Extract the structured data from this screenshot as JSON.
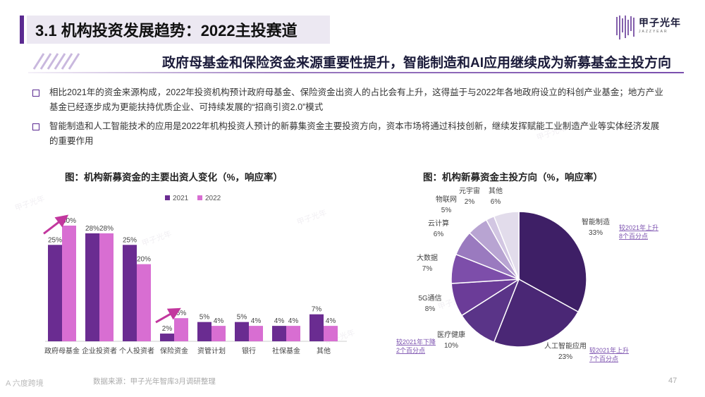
{
  "header": {
    "title": "3.1 机构投资发展趋势：2022主投赛道",
    "logo_name": "甲子光年",
    "logo_sub": "JAZZYEAR"
  },
  "subtitle": "政府母基金和保险资金来源重要性提升，智能制造和AI应用继续成为新募基金主投方向",
  "bullets": [
    "相比2021年的资金来源构成，2022年投资机构预计政府母基金、保险资金出资人的占比会有上升，这得益于与2022年各地政府设立的科创产业基金；地方产业基金已经逐步成为更能扶持优质企业、可持续发展的“招商引资2.0”模式",
    "智能制造和人工智能技术的应用是2022年机构投资人预计的新募集资金主要投资方向，资本市场将通过科技创新，继续发挥赋能工业制造产业等实体经济发展的重要作用"
  ],
  "chart_data": [
    {
      "type": "bar",
      "title": "图：机构新募资金的主要出资人变化（%，响应率）",
      "categories": [
        "政府母基金",
        "企业投资者",
        "个人投资者",
        "保险资金",
        "资管计划",
        "银行",
        "社保基金",
        "其他"
      ],
      "series": [
        {
          "name": "2021",
          "values": [
            25,
            28,
            25,
            2,
            5,
            5,
            4,
            7
          ],
          "labels": [
            "25%",
            "28%",
            "25%",
            "2%",
            "5%",
            "5%",
            "4%",
            "7%"
          ]
        },
        {
          "name": "2022",
          "values": [
            30,
            28,
            20,
            6,
            4,
            4,
            4,
            4
          ],
          "labels": [
            "30%",
            "28%",
            "20%",
            "6%",
            "4%",
            "4%",
            "4%",
            "4%"
          ]
        }
      ],
      "ylim": [
        0,
        32
      ],
      "legend": "top",
      "colors": {
        "2021": "#6a2c91",
        "2022": "#d86ed2",
        "arrow": "#c2379e"
      }
    },
    {
      "type": "pie",
      "title": "图：机构新募资金主投方向（%，响应率）",
      "slices": [
        {
          "name": "智能制造",
          "value": 33,
          "label": "33%",
          "color": "#3e1f66"
        },
        {
          "name": "人工智能应用",
          "value": 23,
          "label": "23%",
          "color": "#4a2775"
        },
        {
          "name": "医疗健康",
          "value": 10,
          "label": "10%",
          "color": "#5a3488"
        },
        {
          "name": "5G通信",
          "value": 8,
          "label": "8%",
          "color": "#6b3c98"
        },
        {
          "name": "大数据",
          "value": 7,
          "label": "7%",
          "color": "#7d4eaa"
        },
        {
          "name": "云计算",
          "value": 6,
          "label": "6%",
          "color": "#9a7abf"
        },
        {
          "name": "物联网",
          "value": 5,
          "label": "5%",
          "color": "#b8a4d2"
        },
        {
          "name": "元宇宙",
          "value": 2,
          "label": "2%",
          "color": "#d2c6e2"
        },
        {
          "name": "其他",
          "value": 6,
          "label": "6%",
          "color": "#e2dceb"
        }
      ],
      "annotations": [
        {
          "line1": "较2021年上升",
          "line2": "8个百分点"
        },
        {
          "line1": "较2021年上升",
          "line2": "7个百分点"
        },
        {
          "line1": "较2021年下降",
          "line2": "2个百分点"
        }
      ]
    }
  ],
  "footer": {
    "brand": "A 六度跨境",
    "source": "数据来源：甲子光年智库3月调研整理",
    "page": "47"
  }
}
